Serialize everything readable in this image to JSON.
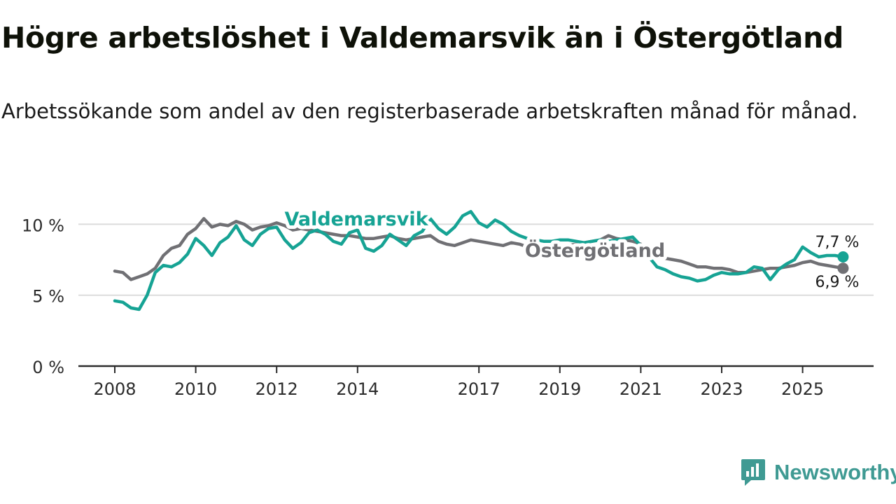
{
  "title": "Högre arbetslöshet i Valdemarsvik än i Östergötland",
  "subtitle": "Arbetssökande som andel av den registerbaserade arbetskraften månad för månad.",
  "brand": {
    "name": "Newsworthy",
    "icon": "newsworthy-logo-icon",
    "color": "#3f9a93"
  },
  "chart_data": {
    "type": "line",
    "title": "Högre arbetslöshet i Valdemarsvik än i Östergötland",
    "xlabel": "",
    "ylabel": "",
    "ylim": [
      0,
      11.5
    ],
    "xlim": [
      2007.9,
      2026.9
    ],
    "grid": true,
    "yticks": [
      0,
      5,
      10
    ],
    "ytick_labels": [
      "0 %",
      "5 %",
      "10 %"
    ],
    "xticks": [
      2008,
      2010,
      2012,
      2014,
      2017,
      2019,
      2021,
      2023,
      2025
    ],
    "xtick_labels": [
      "2008",
      "2010",
      "2012",
      "2014",
      "2017",
      "2019",
      "2021",
      "2023",
      "2025"
    ],
    "series": [
      {
        "name": "Östergötland",
        "color": "#707074",
        "label": "Östergötland",
        "end_label": "6,9 %",
        "x": [
          2008.0,
          2008.2,
          2008.4,
          2008.6,
          2008.8,
          2009.0,
          2009.2,
          2009.4,
          2009.6,
          2009.8,
          2010.0,
          2010.2,
          2010.4,
          2010.6,
          2010.8,
          2011.0,
          2011.2,
          2011.4,
          2011.6,
          2011.8,
          2012.0,
          2012.2,
          2012.4,
          2012.6,
          2012.8,
          2013.0,
          2013.2,
          2013.4,
          2013.6,
          2013.8,
          2014.0,
          2014.2,
          2014.4,
          2014.6,
          2014.8,
          2015.0,
          2015.2,
          2015.4,
          2015.6,
          2015.8,
          2016.0,
          2016.2,
          2016.4,
          2016.6,
          2016.8,
          2017.0,
          2017.2,
          2017.4,
          2017.6,
          2017.8,
          2018.0,
          2018.2,
          2018.4,
          2018.6,
          2018.8,
          2019.0,
          2019.2,
          2019.4,
          2019.6,
          2019.8,
          2020.0,
          2020.2,
          2020.4,
          2020.6,
          2020.8,
          2021.0,
          2021.2,
          2021.4,
          2021.6,
          2021.8,
          2022.0,
          2022.2,
          2022.4,
          2022.6,
          2022.8,
          2023.0,
          2023.2,
          2023.4,
          2023.6,
          2023.8,
          2024.0,
          2024.2,
          2024.4,
          2024.6,
          2024.8,
          2025.0,
          2025.2,
          2025.4,
          2025.6,
          2025.8,
          2026.0
        ],
        "values": [
          6.7,
          6.6,
          6.1,
          6.3,
          6.5,
          6.9,
          7.8,
          8.3,
          8.5,
          9.3,
          9.7,
          10.4,
          9.8,
          10.0,
          9.9,
          10.2,
          10.0,
          9.6,
          9.8,
          9.9,
          10.1,
          9.9,
          9.6,
          9.7,
          9.6,
          9.5,
          9.4,
          9.3,
          9.2,
          9.2,
          9.1,
          9.0,
          9.0,
          9.1,
          9.2,
          9.0,
          8.9,
          9.0,
          9.1,
          9.2,
          8.8,
          8.6,
          8.5,
          8.7,
          8.9,
          8.8,
          8.7,
          8.6,
          8.5,
          8.7,
          8.6,
          8.4,
          8.3,
          8.1,
          8.2,
          8.3,
          8.5,
          8.6,
          8.7,
          8.8,
          8.9,
          9.2,
          9.0,
          8.9,
          8.8,
          8.6,
          8.2,
          7.9,
          7.6,
          7.5,
          7.4,
          7.2,
          7.0,
          7.0,
          6.9,
          6.9,
          6.8,
          6.6,
          6.6,
          6.7,
          6.8,
          6.9,
          6.9,
          7.0,
          7.1,
          7.3,
          7.4,
          7.2,
          7.1,
          7.0,
          6.9
        ]
      },
      {
        "name": "Valdemarsvik",
        "color": "#16a394",
        "label": "Valdemarsvik",
        "end_label": "7,7 %",
        "x": [
          2008.0,
          2008.2,
          2008.4,
          2008.6,
          2008.8,
          2009.0,
          2009.2,
          2009.4,
          2009.6,
          2009.8,
          2010.0,
          2010.2,
          2010.4,
          2010.6,
          2010.8,
          2011.0,
          2011.2,
          2011.4,
          2011.6,
          2011.8,
          2012.0,
          2012.2,
          2012.4,
          2012.6,
          2012.8,
          2013.0,
          2013.2,
          2013.4,
          2013.6,
          2013.8,
          2014.0,
          2014.2,
          2014.4,
          2014.6,
          2014.8,
          2015.0,
          2015.2,
          2015.4,
          2015.6,
          2015.8,
          2016.0,
          2016.2,
          2016.4,
          2016.6,
          2016.8,
          2017.0,
          2017.2,
          2017.4,
          2017.6,
          2017.8,
          2018.0,
          2018.2,
          2018.4,
          2018.6,
          2018.8,
          2019.0,
          2019.2,
          2019.4,
          2019.6,
          2019.8,
          2020.0,
          2020.2,
          2020.4,
          2020.6,
          2020.8,
          2021.0,
          2021.2,
          2021.4,
          2021.6,
          2021.8,
          2022.0,
          2022.2,
          2022.4,
          2022.6,
          2022.8,
          2023.0,
          2023.2,
          2023.4,
          2023.6,
          2023.8,
          2024.0,
          2024.2,
          2024.4,
          2024.6,
          2024.8,
          2025.0,
          2025.2,
          2025.4,
          2025.6,
          2025.8,
          2026.0
        ],
        "values": [
          4.6,
          4.5,
          4.1,
          4.0,
          5.0,
          6.6,
          7.1,
          7.0,
          7.3,
          7.9,
          9.0,
          8.5,
          7.8,
          8.7,
          9.1,
          9.9,
          8.9,
          8.5,
          9.3,
          9.7,
          9.8,
          8.9,
          8.3,
          8.7,
          9.4,
          9.6,
          9.3,
          8.8,
          8.6,
          9.4,
          9.6,
          8.3,
          8.1,
          8.5,
          9.3,
          8.9,
          8.5,
          9.2,
          9.5,
          10.4,
          9.7,
          9.3,
          9.8,
          10.6,
          10.9,
          10.1,
          9.8,
          10.3,
          10.0,
          9.5,
          9.2,
          9.0,
          8.9,
          8.8,
          8.8,
          8.9,
          8.9,
          8.8,
          8.7,
          8.8,
          8.9,
          8.8,
          8.9,
          9.0,
          9.1,
          8.5,
          7.7,
          7.0,
          6.8,
          6.5,
          6.3,
          6.2,
          6.0,
          6.1,
          6.4,
          6.6,
          6.5,
          6.5,
          6.6,
          7.0,
          6.9,
          6.1,
          6.8,
          7.2,
          7.5,
          8.4,
          8.0,
          7.7,
          7.8,
          7.8,
          7.7
        ]
      }
    ],
    "annotations": [
      {
        "text": "Valdemarsvik",
        "series": "Valdemarsvik",
        "at_x": 2015.0
      },
      {
        "text": "Östergötland",
        "series": "Östergötland",
        "at_x": 2018.8
      }
    ]
  }
}
